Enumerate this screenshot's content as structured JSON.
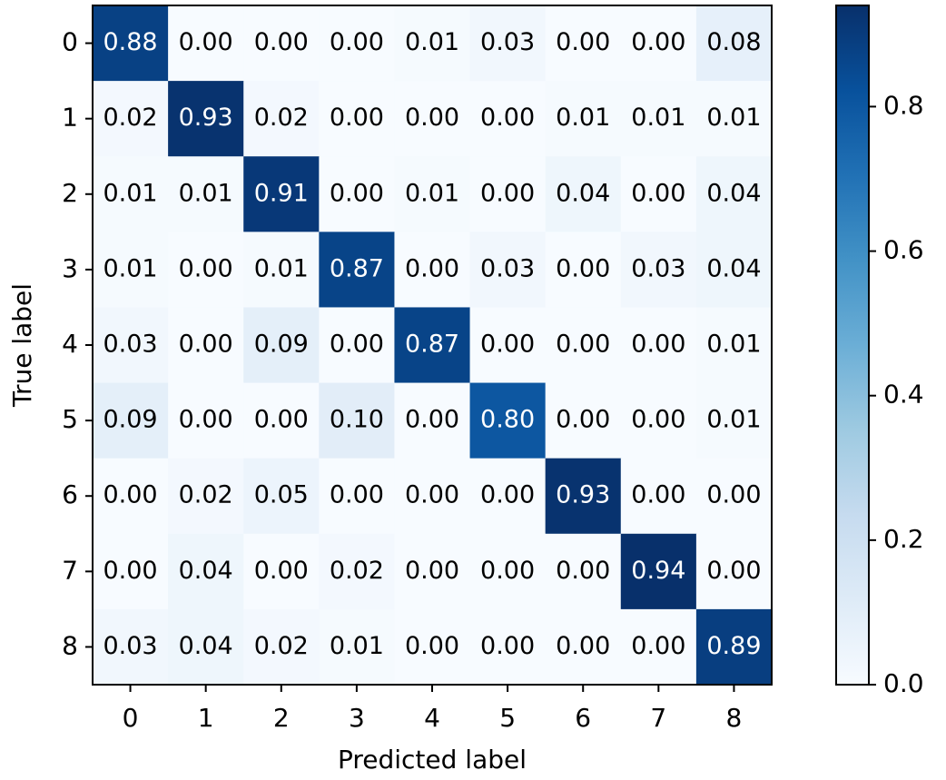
{
  "chart_data": {
    "type": "heatmap",
    "xlabel": "Predicted label",
    "ylabel": "True label",
    "x_categories": [
      "0",
      "1",
      "2",
      "3",
      "4",
      "5",
      "6",
      "7",
      "8"
    ],
    "y_categories": [
      "0",
      "1",
      "2",
      "3",
      "4",
      "5",
      "6",
      "7",
      "8"
    ],
    "values": [
      [
        0.88,
        0,
        0,
        0,
        0.01,
        0.03,
        0,
        0,
        0.08
      ],
      [
        0.02,
        0.93,
        0.02,
        0,
        0,
        0,
        0.01,
        0.01,
        0.01
      ],
      [
        0.01,
        0.01,
        0.91,
        0,
        0.01,
        0,
        0.04,
        0,
        0.04
      ],
      [
        0.01,
        0,
        0.01,
        0.87,
        0,
        0.03,
        0,
        0.03,
        0.04
      ],
      [
        0.03,
        0,
        0.09,
        0,
        0.87,
        0,
        0,
        0,
        0.01
      ],
      [
        0.09,
        0,
        0,
        0.1,
        0,
        0.8,
        0,
        0,
        0.01
      ],
      [
        0,
        0.02,
        0.05,
        0,
        0,
        0,
        0.93,
        0,
        0
      ],
      [
        0,
        0.04,
        0,
        0.02,
        0,
        0,
        0,
        0.94,
        0
      ],
      [
        0.03,
        0.04,
        0.02,
        0.01,
        0,
        0,
        0,
        0,
        0.89
      ]
    ],
    "value_labels": [
      [
        "0.88",
        "0.00",
        "0.00",
        "0.00",
        "0.01",
        "0.03",
        "0.00",
        "0.00",
        "0.08"
      ],
      [
        "0.02",
        "0.93",
        "0.02",
        "0.00",
        "0.00",
        "0.00",
        "0.01",
        "0.01",
        "0.01"
      ],
      [
        "0.01",
        "0.01",
        "0.91",
        "0.00",
        "0.01",
        "0.00",
        "0.04",
        "0.00",
        "0.04"
      ],
      [
        "0.01",
        "0.00",
        "0.01",
        "0.87",
        "0.00",
        "0.03",
        "0.00",
        "0.03",
        "0.04"
      ],
      [
        "0.03",
        "0.00",
        "0.09",
        "0.00",
        "0.87",
        "0.00",
        "0.00",
        "0.00",
        "0.01"
      ],
      [
        "0.09",
        "0.00",
        "0.00",
        "0.10",
        "0.00",
        "0.80",
        "0.00",
        "0.00",
        "0.01"
      ],
      [
        "0.00",
        "0.02",
        "0.05",
        "0.00",
        "0.00",
        "0.00",
        "0.93",
        "0.00",
        "0.00"
      ],
      [
        "0.00",
        "0.04",
        "0.00",
        "0.02",
        "0.00",
        "0.00",
        "0.00",
        "0.94",
        "0.00"
      ],
      [
        "0.03",
        "0.04",
        "0.02",
        "0.01",
        "0.00",
        "0.00",
        "0.00",
        "0.00",
        "0.89"
      ]
    ],
    "clim": [
      0,
      0.94
    ],
    "cticks": [
      {
        "value": 0,
        "label": "0.0"
      },
      0.2,
      0.4,
      0.6,
      0.8
    ]
  }
}
